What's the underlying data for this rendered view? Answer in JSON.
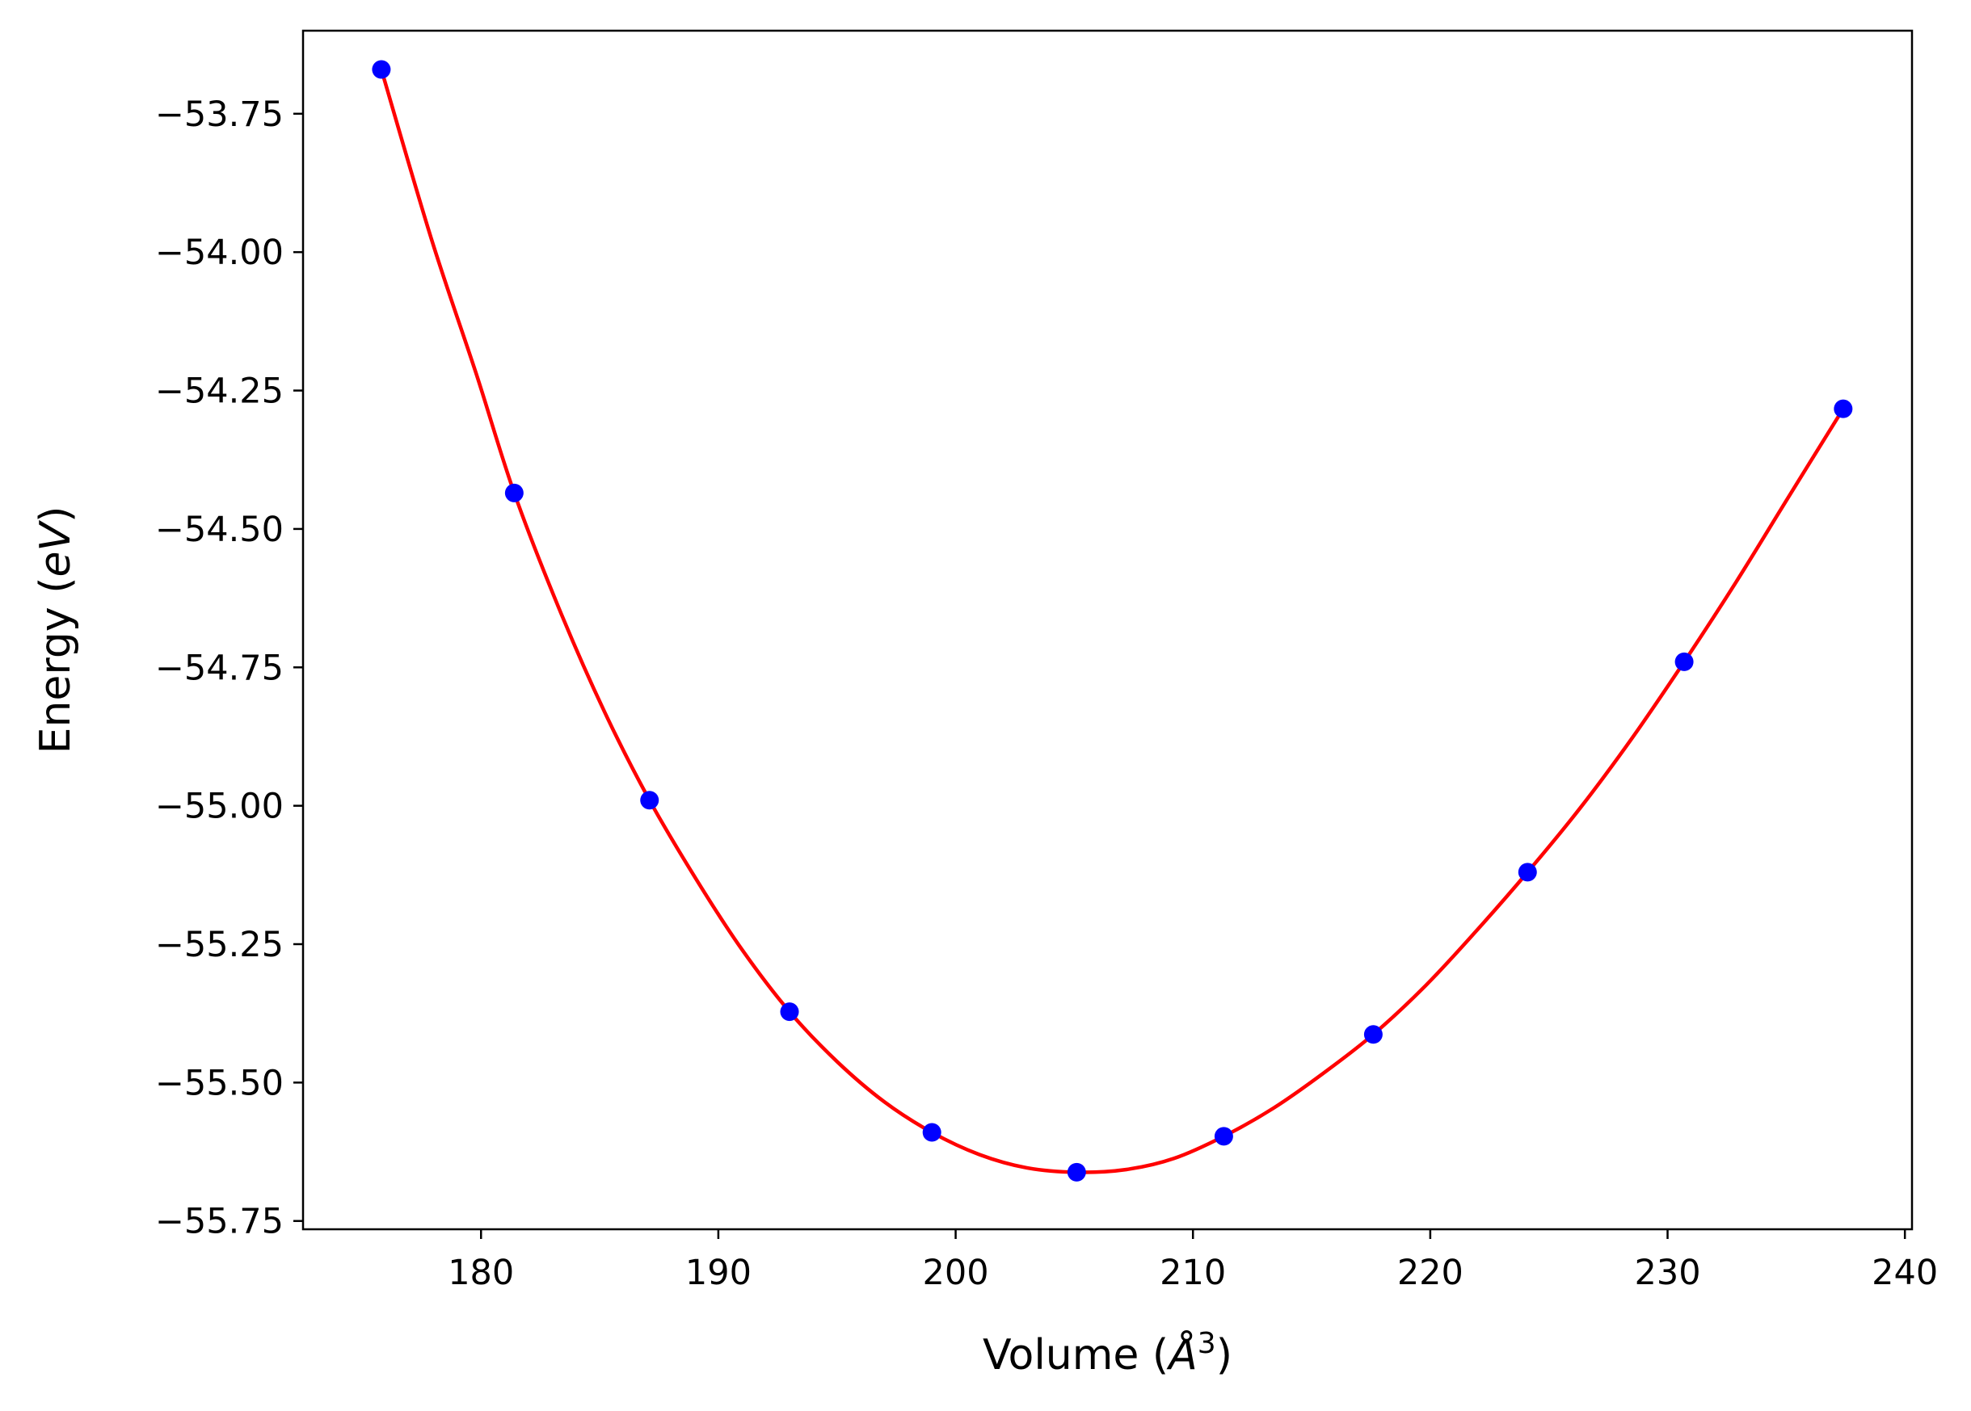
{
  "chart_data": {
    "type": "scatter",
    "xlabel": {
      "prefix": "Volume (",
      "math": "Å",
      "sup": "3",
      "suffix": ")"
    },
    "ylabel": {
      "prefix": "Energy (",
      "math": "eV",
      "suffix": ")"
    },
    "xlim": [
      172.5,
      240.3
    ],
    "ylim": [
      -55.765,
      -53.6
    ],
    "x_ticks": [
      {
        "value": 180,
        "label": "180"
      },
      {
        "value": 190,
        "label": "190"
      },
      {
        "value": 200,
        "label": "200"
      },
      {
        "value": 210,
        "label": "210"
      },
      {
        "value": 220,
        "label": "220"
      },
      {
        "value": 230,
        "label": "230"
      },
      {
        "value": 240,
        "label": "240"
      }
    ],
    "y_ticks": [
      {
        "value": -53.75,
        "label": "−53.75"
      },
      {
        "value": -54.0,
        "label": "−54.00"
      },
      {
        "value": -54.25,
        "label": "−54.25"
      },
      {
        "value": -54.5,
        "label": "−54.50"
      },
      {
        "value": -54.75,
        "label": "−54.75"
      },
      {
        "value": -55.0,
        "label": "−55.00"
      },
      {
        "value": -55.25,
        "label": "−55.25"
      },
      {
        "value": -55.5,
        "label": "−55.50"
      },
      {
        "value": -55.75,
        "label": "−55.75"
      }
    ],
    "grid": false,
    "series": [
      {
        "kind": "points",
        "color": "#0000ff",
        "x": [
          175.8,
          181.4,
          187.1,
          193.0,
          199.0,
          205.1,
          211.3,
          217.6,
          224.1,
          230.7,
          237.4
        ],
        "y": [
          -53.67,
          -54.435,
          -54.99,
          -55.372,
          -55.59,
          -55.662,
          -55.597,
          -55.413,
          -55.12,
          -54.74,
          -54.283
        ]
      },
      {
        "kind": "fit-curve",
        "color": "#ff0000",
        "x": [
          175.8,
          177.9,
          179.8,
          181.4,
          183.3,
          185.2,
          187.1,
          189.1,
          191.0,
          193.0,
          195.0,
          197.0,
          199.0,
          201.0,
          203.0,
          205.1,
          207.2,
          209.2,
          211.3,
          213.4,
          215.5,
          217.6,
          219.8,
          221.9,
          224.1,
          226.3,
          228.5,
          230.7,
          232.9,
          235.1,
          237.4
        ],
        "y": [
          -53.67,
          -53.975,
          -54.22,
          -54.435,
          -54.645,
          -54.83,
          -54.99,
          -55.135,
          -55.26,
          -55.372,
          -55.462,
          -55.535,
          -55.59,
          -55.63,
          -55.654,
          -55.662,
          -55.657,
          -55.637,
          -55.597,
          -55.546,
          -55.483,
          -55.413,
          -55.325,
          -55.228,
          -55.12,
          -55.005,
          -54.878,
          -54.74,
          -54.595,
          -54.442,
          -54.283
        ]
      }
    ]
  }
}
